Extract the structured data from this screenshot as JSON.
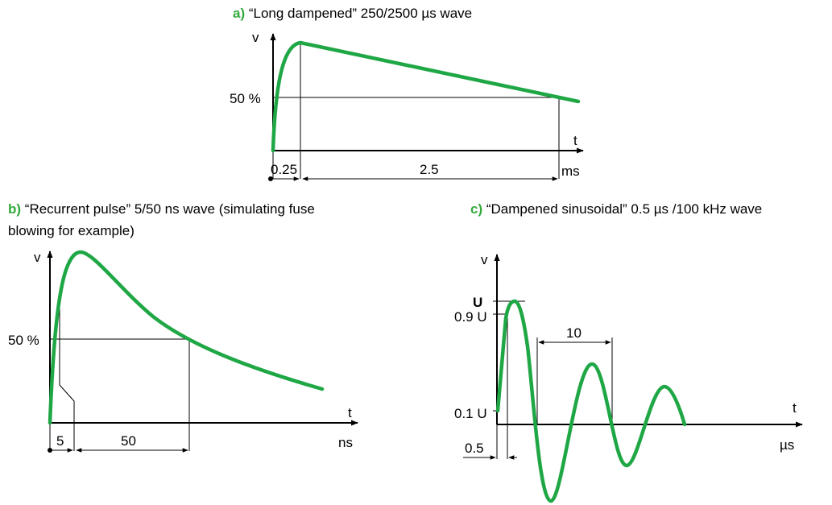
{
  "colors": {
    "wave": "#1fa745",
    "label": "#33aa3c",
    "axis": "#000000"
  },
  "a": {
    "label": "a)",
    "title": "“Long  dampened” 250/2500 µs wave",
    "v": "v",
    "t": "t",
    "half": "50 %",
    "rise": "0.25",
    "width": "2.5",
    "unit": "ms"
  },
  "b": {
    "label": "b)",
    "title_line1": "“Recurrent pulse” 5/50 ns wave (simulating fuse",
    "title_line2": "blowing for example)",
    "v": "v",
    "t": "t",
    "half": "50 %",
    "rise": "5",
    "width": "50",
    "unit": "ns"
  },
  "c": {
    "label": "c)",
    "title": "“Dampened sinusoidal” 0.5 µs /100 kHz wave",
    "v": "v",
    "t": "t",
    "peak": "U",
    "level_high": "0.9 U",
    "level_low": "0.1 U",
    "period": "10",
    "rise": "0.5",
    "unit": "µs"
  }
}
